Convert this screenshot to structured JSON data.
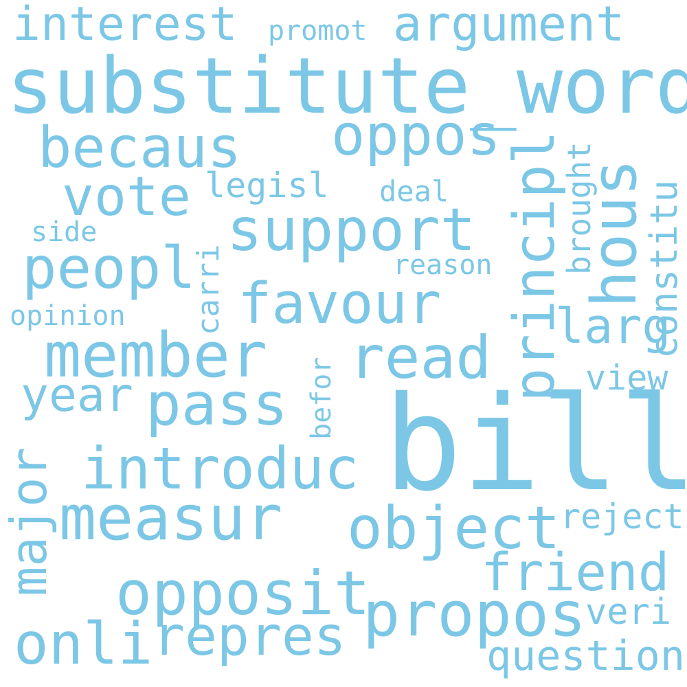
{
  "color": "#7cc7e6",
  "words": {
    "bill": "bill",
    "substitute_word": "substitute_word",
    "interest": "interest",
    "promot": "promot",
    "argument": "argument",
    "becaus": "becaus",
    "oppos": "oppos",
    "principl": "principl",
    "hous": "hous",
    "brought": "brought",
    "constitu": "constitu",
    "vote": "vote",
    "legisl": "legisl",
    "deal": "deal",
    "support": "support",
    "side": "side",
    "peopl": "peopl",
    "carri": "carri",
    "reason": "reason",
    "opinion": "opinion",
    "favour": "favour",
    "larg": "larg",
    "member": "member",
    "read": "read",
    "befor": "befor",
    "year": "year",
    "pass": "pass",
    "view": "view",
    "introduc": "introduc",
    "major": "major",
    "measur": "measur",
    "object": "object",
    "reject": "reject",
    "friend": "friend",
    "opposit": "opposit",
    "propos": "propos",
    "veri": "veri",
    "onli": "onli",
    "repres": "repres",
    "question": "question"
  }
}
